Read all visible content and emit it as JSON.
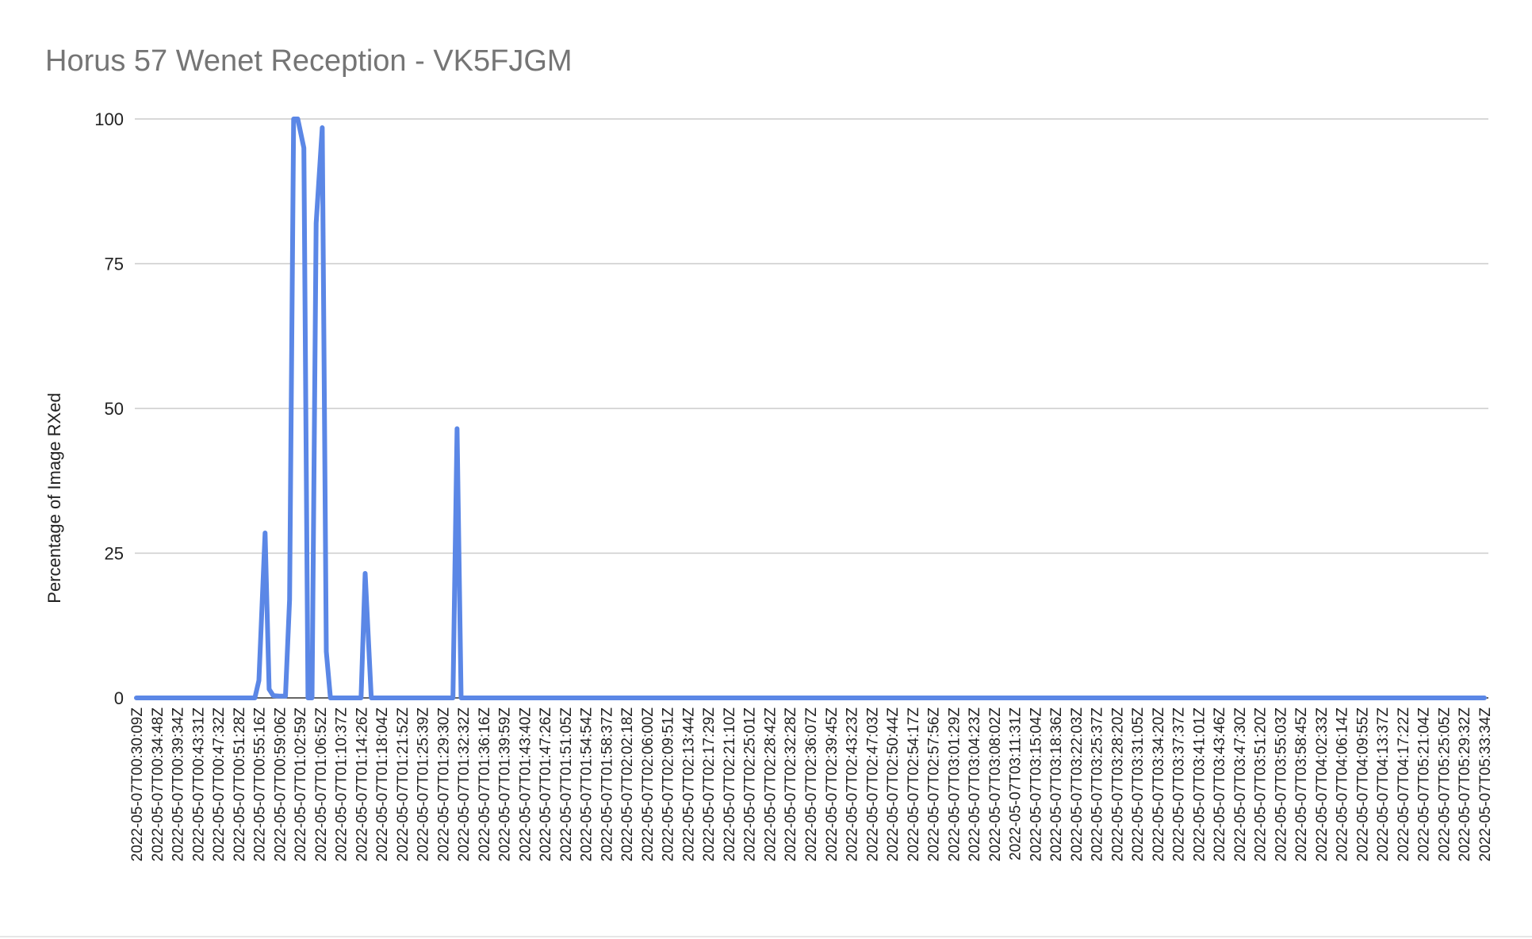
{
  "chart_data": {
    "type": "line",
    "title": "Horus 57 Wenet Reception - VK5FJGM",
    "xlabel": "",
    "ylabel": "Percentage of Image RXed",
    "ylim": [
      0,
      100
    ],
    "yticks": [
      0,
      25,
      50,
      75,
      100
    ],
    "grid": true,
    "legend": "none",
    "colors": {
      "line": "#5b87e6",
      "grid": "#cccccc",
      "title": "#757575"
    },
    "x_tick_labels": [
      "2022-05-07T00:30:09Z",
      "2022-05-07T00:34:48Z",
      "2022-05-07T00:39:34Z",
      "2022-05-07T00:43:31Z",
      "2022-05-07T00:47:32Z",
      "2022-05-07T00:51:28Z",
      "2022-05-07T00:55:16Z",
      "2022-05-07T00:59:06Z",
      "2022-05-07T01:02:59Z",
      "2022-05-07T01:06:52Z",
      "2022-05-07T01:10:37Z",
      "2022-05-07T01:14:26Z",
      "2022-05-07T01:18:04Z",
      "2022-05-07T01:21:52Z",
      "2022-05-07T01:25:39Z",
      "2022-05-07T01:29:30Z",
      "2022-05-07T01:32:32Z",
      "2022-05-07T01:36:16Z",
      "2022-05-07T01:39:59Z",
      "2022-05-07T01:43:40Z",
      "2022-05-07T01:47:26Z",
      "2022-05-07T01:51:05Z",
      "2022-05-07T01:54:54Z",
      "2022-05-07T01:58:37Z",
      "2022-05-07T02:02:18Z",
      "2022-05-07T02:06:00Z",
      "2022-05-07T02:09:51Z",
      "2022-05-07T02:13:44Z",
      "2022-05-07T02:17:29Z",
      "2022-05-07T02:21:10Z",
      "2022-05-07T02:25:01Z",
      "2022-05-07T02:28:42Z",
      "2022-05-07T02:32:28Z",
      "2022-05-07T02:36:07Z",
      "2022-05-07T02:39:45Z",
      "2022-05-07T02:43:23Z",
      "2022-05-07T02:47:03Z",
      "2022-05-07T02:50:44Z",
      "2022-05-07T02:54:17Z",
      "2022-05-07T02:57:56Z",
      "2022-05-07T03:01:29Z",
      "2022-05-07T03:04:23Z",
      "2022-05-07T03:08:02Z",
      "2022-05-07T03:11:31Z",
      "2022-05-07T03:15:04Z",
      "2022-05-07T03:18:36Z",
      "2022-05-07T03:22:03Z",
      "2022-05-07T03:25:37Z",
      "2022-05-07T03:28:20Z",
      "2022-05-07T03:31:05Z",
      "2022-05-07T03:34:20Z",
      "2022-05-07T03:37:37Z",
      "2022-05-07T03:41:01Z",
      "2022-05-07T03:43:46Z",
      "2022-05-07T03:47:30Z",
      "2022-05-07T03:51:20Z",
      "2022-05-07T03:55:03Z",
      "2022-05-07T03:58:45Z",
      "2022-05-07T04:02:33Z",
      "2022-05-07T04:06:14Z",
      "2022-05-07T04:09:55Z",
      "2022-05-07T04:13:37Z",
      "2022-05-07T04:17:22Z",
      "2022-05-07T05:21:04Z",
      "2022-05-07T05:25:05Z",
      "2022-05-07T05:29:32Z",
      "2022-05-07T05:33:34Z"
    ],
    "series": [
      {
        "x_index": [
          0,
          5.8,
          6.0,
          6.3,
          6.5,
          6.7,
          7.0,
          7.3,
          7.5,
          7.7,
          7.9,
          8.2,
          8.4,
          8.6,
          8.8,
          9.1,
          9.3,
          9.5,
          9.8,
          10.0,
          11.0,
          11.2,
          11.5,
          11.7,
          15.5,
          15.7,
          15.9,
          16.1,
          66
        ],
        "values": [
          0,
          0,
          3,
          28.5,
          1.5,
          0.4,
          0.3,
          0.3,
          17,
          100,
          100,
          95,
          0,
          0,
          82,
          98.5,
          8,
          0,
          0,
          0,
          0,
          21.5,
          0,
          0,
          0,
          46.5,
          0,
          0,
          0
        ]
      }
    ]
  }
}
